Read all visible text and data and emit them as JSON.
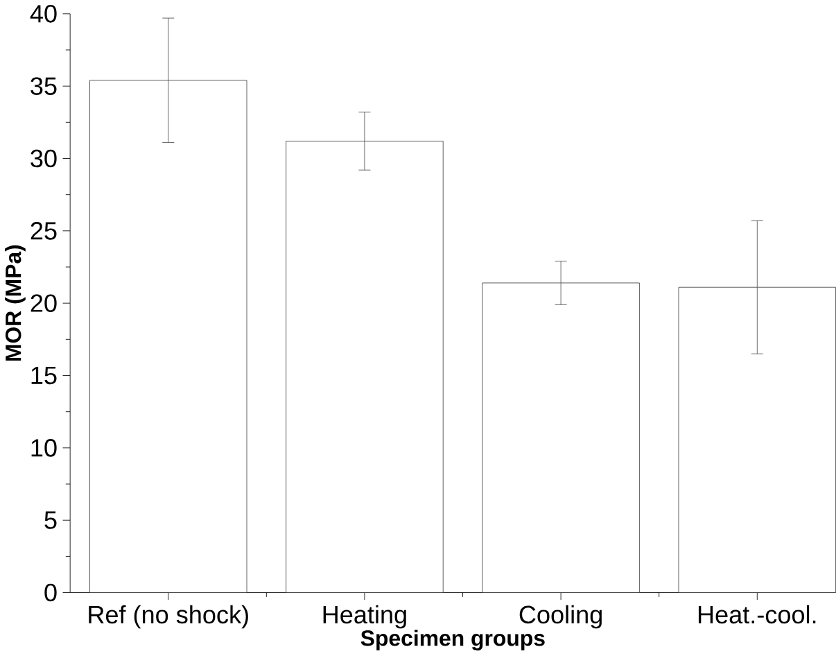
{
  "chart_data": {
    "type": "bar",
    "xlabel": "Specimen groups",
    "ylabel": "MOR (MPa)",
    "categories": [
      "Ref (no shock)",
      "Heating",
      "Cooling",
      "Heat.-cool."
    ],
    "values": [
      35.4,
      31.2,
      21.4,
      21.1
    ],
    "errors": [
      4.3,
      2.0,
      1.5,
      4.6
    ],
    "color": "#ffffff",
    "ylim": [
      0,
      40
    ],
    "yticks": [
      0,
      5,
      10,
      15,
      20,
      25,
      30,
      35,
      40
    ],
    "grid": false
  }
}
